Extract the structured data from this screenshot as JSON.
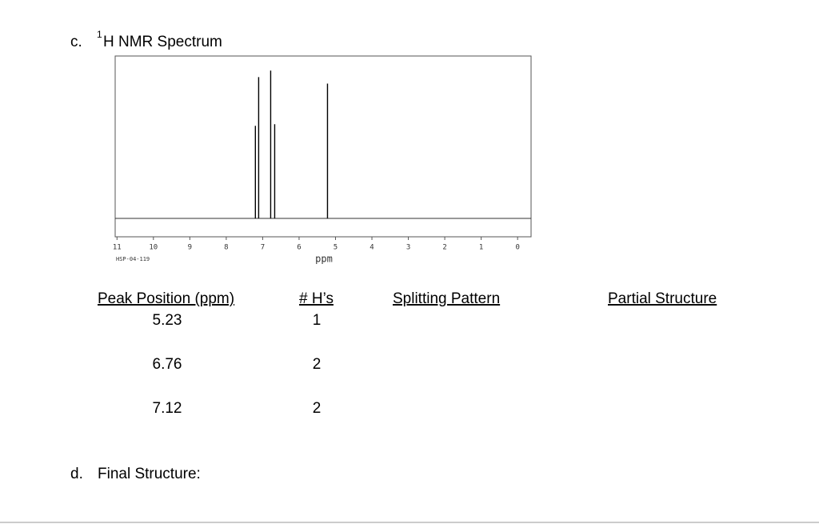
{
  "section_c": {
    "label": "c.",
    "superscript": "1",
    "title": "H NMR Spectrum"
  },
  "chart_data": {
    "type": "spectrum",
    "x_label": "ppm",
    "sample_id": "HSP-04-119",
    "xlim": [
      11.05,
      -0.37
    ],
    "xticks": [
      11,
      10,
      9,
      8,
      7,
      6,
      5,
      4,
      3,
      2,
      1,
      0
    ],
    "ylim": [
      0,
      1
    ],
    "x": [
      7.2,
      7.11,
      6.78,
      6.67,
      5.22
    ],
    "values": [
      0.57,
      0.87,
      0.91,
      0.58,
      0.83
    ],
    "color": "#000000"
  },
  "table": {
    "headers": [
      "Peak Position (ppm)",
      "# H’s",
      "Splitting Pattern",
      "Partial Structure"
    ],
    "rows": [
      [
        5.23,
        1
      ],
      [
        6.76,
        2
      ],
      [
        7.12,
        2
      ]
    ]
  },
  "section_d": {
    "label": "d.",
    "title": "Final Structure:"
  }
}
